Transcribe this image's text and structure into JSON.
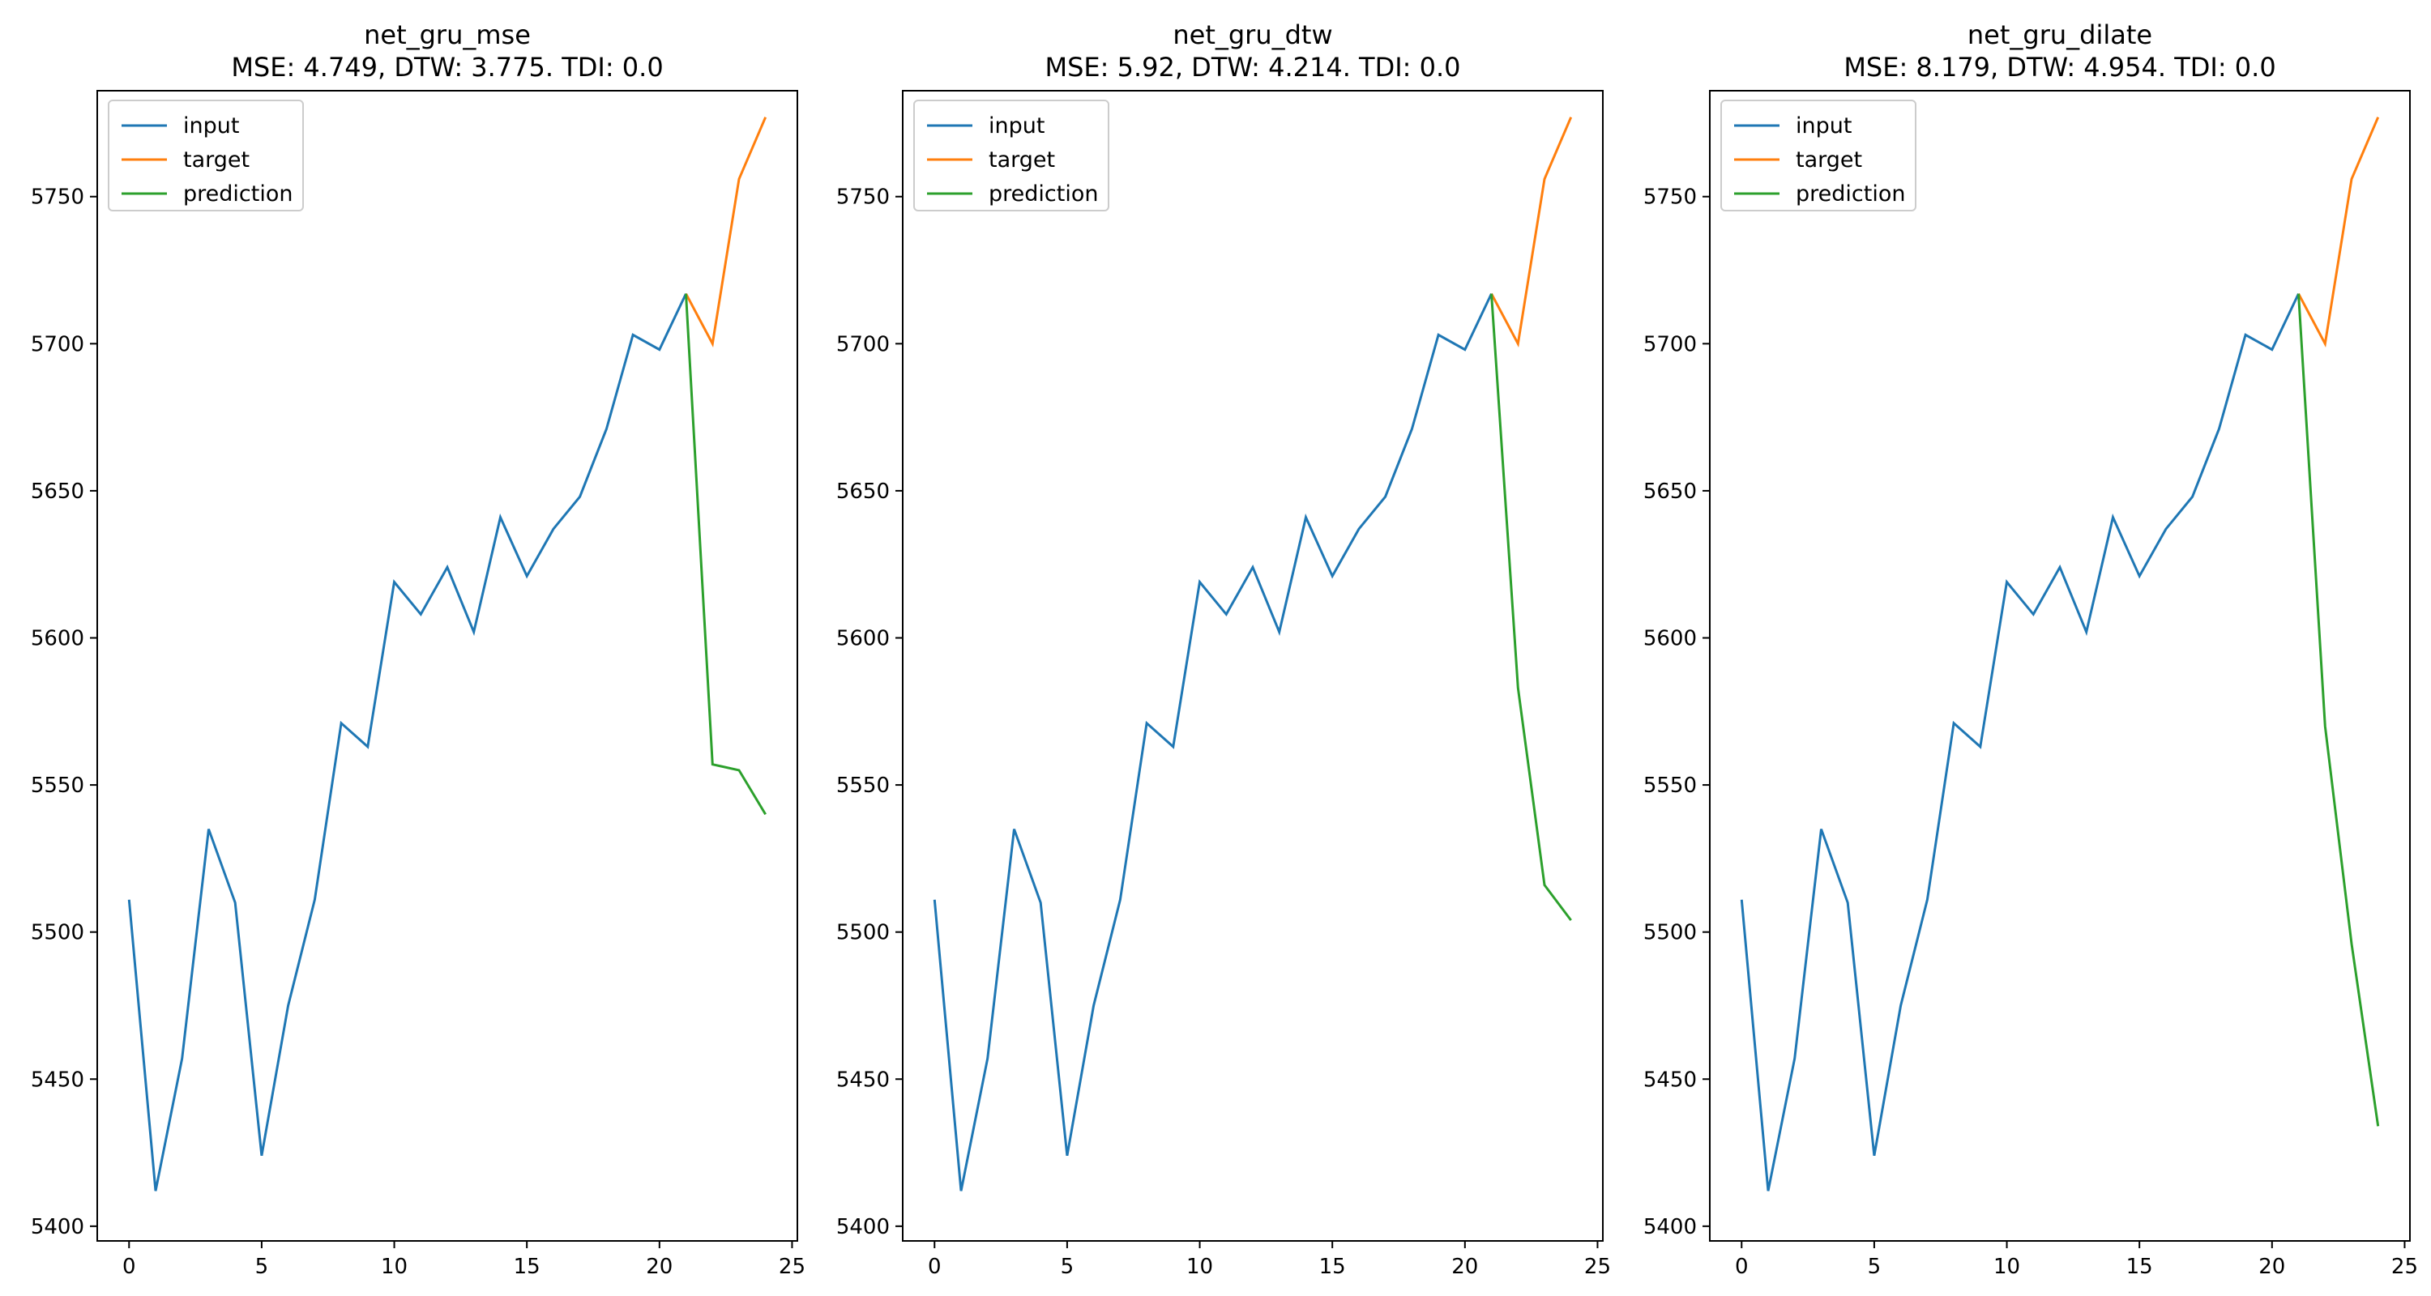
{
  "chart_data": [
    {
      "type": "line",
      "title": "net_gru_mse",
      "subtitle": "MSE: 4.749, DTW: 3.775. TDI: 0.0",
      "xlabel": "",
      "ylabel": "",
      "xlim": [
        -1.2,
        25.2
      ],
      "ylim": [
        5395,
        5786
      ],
      "xticks": [
        0,
        5,
        10,
        15,
        20,
        25
      ],
      "yticks": [
        5400,
        5450,
        5500,
        5550,
        5600,
        5650,
        5700,
        5750
      ],
      "grid": false,
      "legend_position": "top-left",
      "series": [
        {
          "name": "input",
          "color": "#1f77b4",
          "x": [
            0,
            1,
            2,
            3,
            4,
            5,
            6,
            7,
            8,
            9,
            10,
            11,
            12,
            13,
            14,
            15,
            16,
            17,
            18,
            19,
            20,
            21
          ],
          "values": [
            5511,
            5412,
            5457,
            5535,
            5510,
            5424,
            5475,
            5511,
            5571,
            5563,
            5619,
            5608,
            5624,
            5602,
            5641,
            5621,
            5637,
            5648,
            5671,
            5703,
            5698,
            5717
          ]
        },
        {
          "name": "target",
          "color": "#ff7f0e",
          "x": [
            21,
            22,
            23,
            24
          ],
          "values": [
            5717,
            5700,
            5756,
            5777
          ]
        },
        {
          "name": "prediction",
          "color": "#2ca02c",
          "x": [
            21,
            22,
            23,
            24
          ],
          "values": [
            5717,
            5557,
            5555,
            5540
          ]
        }
      ]
    },
    {
      "type": "line",
      "title": "net_gru_dtw",
      "subtitle": "MSE: 5.92, DTW: 4.214. TDI: 0.0",
      "xlabel": "",
      "ylabel": "",
      "xlim": [
        -1.2,
        25.2
      ],
      "ylim": [
        5395,
        5786
      ],
      "xticks": [
        0,
        5,
        10,
        15,
        20,
        25
      ],
      "yticks": [
        5400,
        5450,
        5500,
        5550,
        5600,
        5650,
        5700,
        5750
      ],
      "grid": false,
      "legend_position": "top-left",
      "series": [
        {
          "name": "input",
          "color": "#1f77b4",
          "x": [
            0,
            1,
            2,
            3,
            4,
            5,
            6,
            7,
            8,
            9,
            10,
            11,
            12,
            13,
            14,
            15,
            16,
            17,
            18,
            19,
            20,
            21
          ],
          "values": [
            5511,
            5412,
            5457,
            5535,
            5510,
            5424,
            5475,
            5511,
            5571,
            5563,
            5619,
            5608,
            5624,
            5602,
            5641,
            5621,
            5637,
            5648,
            5671,
            5703,
            5698,
            5717
          ]
        },
        {
          "name": "target",
          "color": "#ff7f0e",
          "x": [
            21,
            22,
            23,
            24
          ],
          "values": [
            5717,
            5700,
            5756,
            5777
          ]
        },
        {
          "name": "prediction",
          "color": "#2ca02c",
          "x": [
            21,
            22,
            23,
            24
          ],
          "values": [
            5717,
            5583,
            5516,
            5504
          ]
        }
      ]
    },
    {
      "type": "line",
      "title": "net_gru_dilate",
      "subtitle": "MSE: 8.179, DTW: 4.954. TDI: 0.0",
      "xlabel": "",
      "ylabel": "",
      "xlim": [
        -1.2,
        25.2
      ],
      "ylim": [
        5395,
        5786
      ],
      "xticks": [
        0,
        5,
        10,
        15,
        20,
        25
      ],
      "yticks": [
        5400,
        5450,
        5500,
        5550,
        5600,
        5650,
        5700,
        5750
      ],
      "grid": false,
      "legend_position": "top-left",
      "series": [
        {
          "name": "input",
          "color": "#1f77b4",
          "x": [
            0,
            1,
            2,
            3,
            4,
            5,
            6,
            7,
            8,
            9,
            10,
            11,
            12,
            13,
            14,
            15,
            16,
            17,
            18,
            19,
            20,
            21
          ],
          "values": [
            5511,
            5412,
            5457,
            5535,
            5510,
            5424,
            5475,
            5511,
            5571,
            5563,
            5619,
            5608,
            5624,
            5602,
            5641,
            5621,
            5637,
            5648,
            5671,
            5703,
            5698,
            5717
          ]
        },
        {
          "name": "target",
          "color": "#ff7f0e",
          "x": [
            21,
            22,
            23,
            24
          ],
          "values": [
            5717,
            5700,
            5756,
            5777
          ]
        },
        {
          "name": "prediction",
          "color": "#2ca02c",
          "x": [
            21,
            22,
            23,
            24
          ],
          "values": [
            5717,
            5570,
            5496,
            5434
          ]
        }
      ]
    }
  ]
}
